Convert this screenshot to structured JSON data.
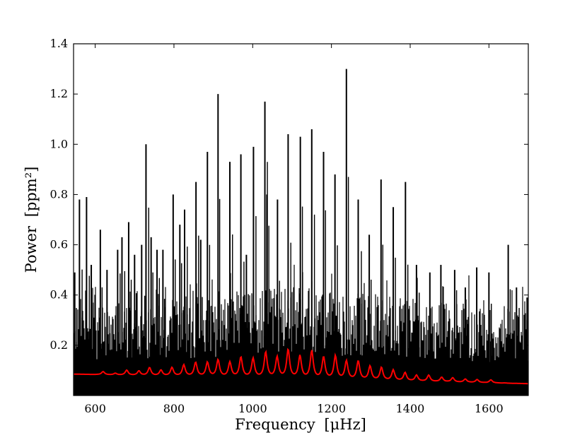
{
  "chart_data": {
    "type": "line",
    "title": "",
    "xlabel": "Frequency",
    "xlabel_unit": "[μHz]",
    "ylabel": "Power",
    "ylabel_unit": "[ppm²]",
    "xlim": [
      545,
      1700
    ],
    "ylim": [
      0,
      1.4
    ],
    "x_ticks": [
      600,
      800,
      1000,
      1200,
      1400,
      1600
    ],
    "y_ticks": [
      0.2,
      0.4,
      0.6,
      0.8,
      1.0,
      1.2,
      1.4
    ],
    "x_tick_labels": [
      "600",
      "800",
      "1000",
      "1200",
      "1400",
      "1600"
    ],
    "y_tick_labels": [
      "0.2",
      "0.4",
      "0.6",
      "0.8",
      "1.0",
      "1.2",
      "1.4"
    ],
    "grid": false,
    "legend": "none",
    "series": [
      {
        "color": "#000000",
        "style": "power spectrum (dense noise)",
        "points": [
          [
            548,
            0.49
          ],
          [
            560,
            0.78
          ],
          [
            578,
            0.79
          ],
          [
            590,
            0.52
          ],
          [
            613,
            0.66
          ],
          [
            630,
            0.5
          ],
          [
            657,
            0.58
          ],
          [
            668,
            0.63
          ],
          [
            685,
            0.69
          ],
          [
            700,
            0.56
          ],
          [
            718,
            0.6
          ],
          [
            729,
            1.0
          ],
          [
            742,
            0.63
          ],
          [
            757,
            0.58
          ],
          [
            772,
            0.58
          ],
          [
            798,
            0.8
          ],
          [
            815,
            0.68
          ],
          [
            827,
            0.74
          ],
          [
            856,
            0.85
          ],
          [
            868,
            0.62
          ],
          [
            885,
            0.97
          ],
          [
            912,
            1.2
          ],
          [
            942,
            0.93
          ],
          [
            970,
            0.96
          ],
          [
            984,
            0.56
          ],
          [
            1002,
            0.99
          ],
          [
            1031,
            1.17
          ],
          [
            1036,
            0.8
          ],
          [
            1063,
            0.78
          ],
          [
            1090,
            1.04
          ],
          [
            1121,
            1.03
          ],
          [
            1150,
            1.06
          ],
          [
            1180,
            0.97
          ],
          [
            1209,
            0.88
          ],
          [
            1238,
            1.3
          ],
          [
            1268,
            0.78
          ],
          [
            1296,
            0.64
          ],
          [
            1326,
            0.86
          ],
          [
            1357,
            0.75
          ],
          [
            1388,
            0.85
          ],
          [
            1416,
            0.52
          ],
          [
            1450,
            0.49
          ],
          [
            1478,
            0.52
          ],
          [
            1513,
            0.5
          ],
          [
            1540,
            0.43
          ],
          [
            1569,
            0.51
          ],
          [
            1600,
            0.49
          ],
          [
            1649,
            0.6
          ],
          [
            1670,
            0.43
          ],
          [
            1697,
            0.39
          ]
        ]
      },
      {
        "color": "#ff0000",
        "style": "fitted Lorentzian profile",
        "points": [
          [
            548,
            0.085
          ],
          [
            590,
            0.075
          ],
          [
            620,
            0.095
          ],
          [
            651,
            0.088
          ],
          [
            680,
            0.1
          ],
          [
            711,
            0.097
          ],
          [
            738,
            0.11
          ],
          [
            767,
            0.1
          ],
          [
            795,
            0.11
          ],
          [
            825,
            0.12
          ],
          [
            855,
            0.13
          ],
          [
            885,
            0.13
          ],
          [
            912,
            0.14
          ],
          [
            942,
            0.13
          ],
          [
            970,
            0.15
          ],
          [
            1001,
            0.145
          ],
          [
            1033,
            0.17
          ],
          [
            1062,
            0.15
          ],
          [
            1090,
            0.18
          ],
          [
            1120,
            0.155
          ],
          [
            1150,
            0.175
          ],
          [
            1180,
            0.15
          ],
          [
            1210,
            0.155
          ],
          [
            1238,
            0.135
          ],
          [
            1268,
            0.135
          ],
          [
            1298,
            0.115
          ],
          [
            1327,
            0.11
          ],
          [
            1357,
            0.1
          ],
          [
            1387,
            0.09
          ],
          [
            1416,
            0.08
          ],
          [
            1447,
            0.08
          ],
          [
            1480,
            0.072
          ],
          [
            1508,
            0.07
          ],
          [
            1540,
            0.065
          ],
          [
            1570,
            0.063
          ],
          [
            1605,
            0.062
          ],
          [
            1640,
            0.05
          ],
          [
            1697,
            0.047
          ]
        ]
      }
    ]
  }
}
